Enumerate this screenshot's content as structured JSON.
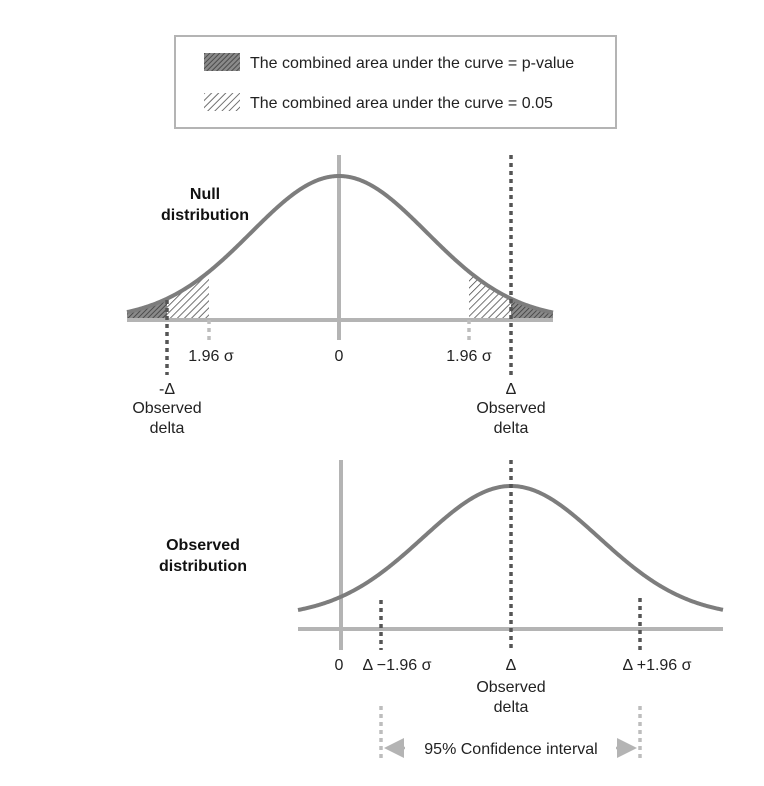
{
  "legend": {
    "items": [
      {
        "label": "The combined area under the curve = p-value",
        "pattern": "dense"
      },
      {
        "label": "The combined area under the curve = 0.05",
        "pattern": "sparse"
      }
    ]
  },
  "null_panel": {
    "title_line1": "Null",
    "title_line2": "distribution",
    "left_sigma": "1.96 σ",
    "zero": "0",
    "right_sigma": "1.96 σ",
    "neg_delta": "-Δ",
    "neg_observed": "Observed",
    "neg_delta_word": "delta",
    "pos_delta": "Δ",
    "pos_observed": "Observed",
    "pos_delta_word": "delta"
  },
  "observed_panel": {
    "title_line1": "Observed",
    "title_line2": "distribution",
    "zero": "0",
    "lower": "Δ −1.96 σ",
    "delta": "Δ",
    "observed": "Observed",
    "delta_word": "delta",
    "upper": "Δ +1.96 σ",
    "ci_label": "95% Confidence interval"
  },
  "colors": {
    "curve": "#7d7d7d",
    "axis": "#b4b4b4",
    "dense_hatch": "#555555",
    "marker_dark": "#555555",
    "marker_light": "#bdbdbd"
  }
}
